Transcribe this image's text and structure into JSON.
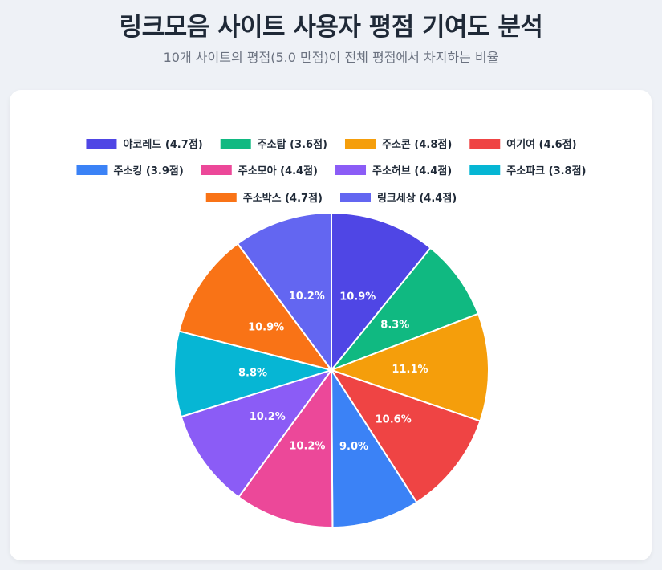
{
  "header": {
    "title": "링크모음 사이트 사용자 평점 기여도 분석",
    "subtitle": "10개 사이트의 평점(5.0 만점)이 전체 평점에서 차지하는 비율"
  },
  "chart_data": {
    "type": "pie",
    "legend_position": "top",
    "slices": [
      {
        "label": "야코레드 (4.7점)",
        "value": 4.7,
        "percent": "10.9%",
        "color": "#4f46e5"
      },
      {
        "label": "주소탑 (3.6점)",
        "value": 3.6,
        "percent": "8.3%",
        "color": "#10b981"
      },
      {
        "label": "주소콘 (4.8점)",
        "value": 4.8,
        "percent": "11.1%",
        "color": "#f59e0b"
      },
      {
        "label": "여기여 (4.6점)",
        "value": 4.6,
        "percent": "10.6%",
        "color": "#ef4444"
      },
      {
        "label": "주소킹 (3.9점)",
        "value": 3.9,
        "percent": "9.0%",
        "color": "#3b82f6"
      },
      {
        "label": "주소모아 (4.4점)",
        "value": 4.4,
        "percent": "10.2%",
        "color": "#ec4899"
      },
      {
        "label": "주소허브 (4.4점)",
        "value": 4.4,
        "percent": "10.2%",
        "color": "#8b5cf6"
      },
      {
        "label": "주소파크 (3.8점)",
        "value": 3.8,
        "percent": "8.8%",
        "color": "#06b6d4"
      },
      {
        "label": "주소박스 (4.7점)",
        "value": 4.7,
        "percent": "10.9%",
        "color": "#f97316"
      },
      {
        "label": "링크세상 (4.4점)",
        "value": 4.4,
        "percent": "10.2%",
        "color": "#6366f1"
      }
    ]
  }
}
